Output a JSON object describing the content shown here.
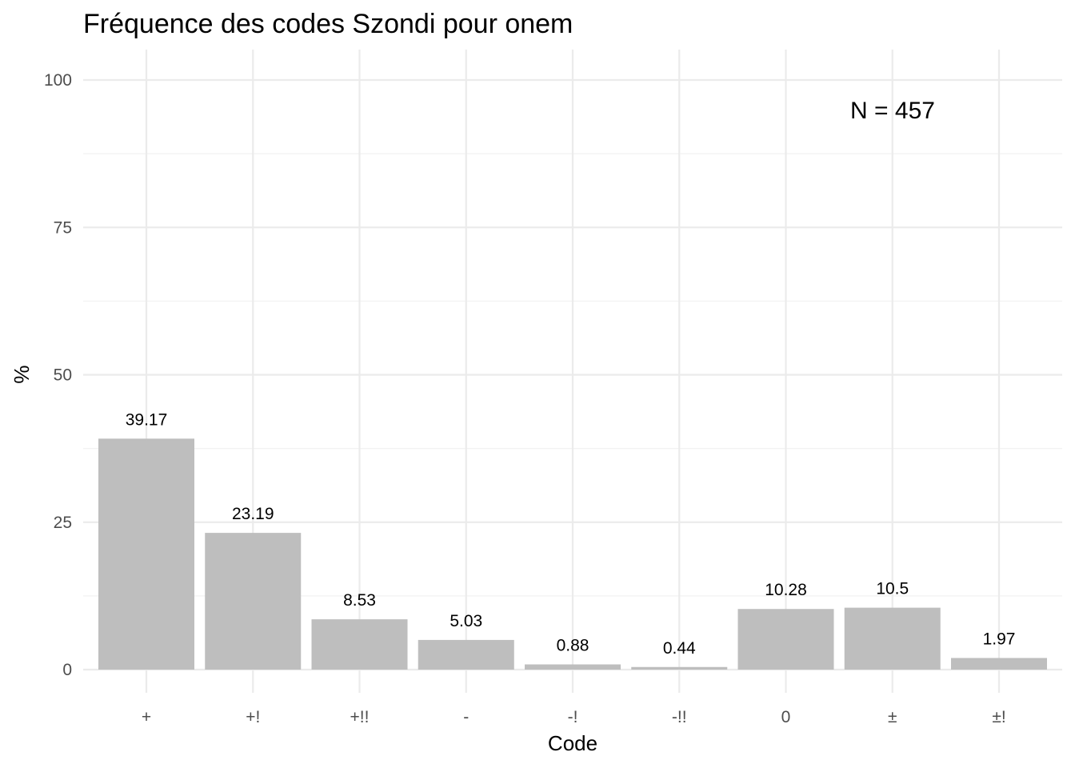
{
  "chart_data": {
    "type": "bar",
    "title": "Fréquence des codes Szondi pour onem",
    "xlabel": "Code",
    "ylabel": "%",
    "categories": [
      "+",
      "+!",
      "+!!",
      "-",
      "-!",
      "-!!",
      "0",
      "±",
      "±!"
    ],
    "values": [
      39.17,
      23.19,
      8.53,
      5.03,
      0.88,
      0.44,
      10.28,
      10.5,
      1.97
    ],
    "data_labels": [
      "39.17",
      "23.19",
      "8.53",
      "5.03",
      "0.88",
      "0.44",
      "10.28",
      "10.5",
      "1.97"
    ],
    "ylim": [
      0,
      100
    ],
    "yticks": [
      0,
      25,
      50,
      75,
      100
    ],
    "ytick_labels": [
      "0",
      "25",
      "50",
      "75",
      "100"
    ],
    "annotation": "N = 457",
    "bar_color": "#bebebe",
    "grid": true,
    "legend": "none"
  }
}
